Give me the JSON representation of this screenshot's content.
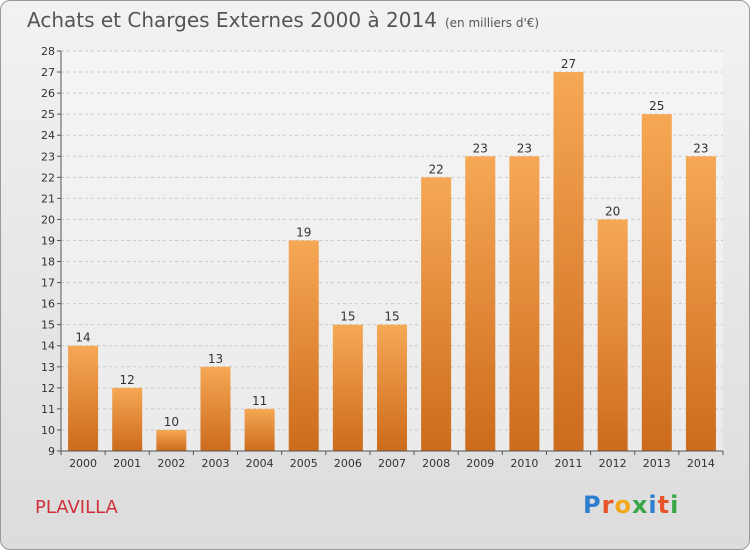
{
  "title": "Achats et Charges Externes 2000 à 2014",
  "unit_note": "(en milliers d'€)",
  "place": "PLAVILLA",
  "logo": {
    "text": "Proxiti",
    "letters": [
      "P",
      "r",
      "o",
      "x",
      "i",
      "t",
      "i"
    ],
    "colors": [
      "#2f7fd0",
      "#e8542a",
      "#f2a81d",
      "#3aa64a",
      "#2f7fd0",
      "#e8542a",
      "#3aa64a"
    ]
  },
  "colors": {
    "bar_light": "#f6a855",
    "bar_dark": "#cc6b1c",
    "grid": "#c9c9c9",
    "axis_text": "#333333",
    "place_text": "#d0303a"
  },
  "chart_data": {
    "type": "bar",
    "categories": [
      "2000",
      "2001",
      "2002",
      "2003",
      "2004",
      "2005",
      "2006",
      "2007",
      "2008",
      "2009",
      "2010",
      "2011",
      "2012",
      "2013",
      "2014"
    ],
    "values": [
      14,
      12,
      10,
      13,
      11,
      19,
      15,
      15,
      22,
      23,
      23,
      27,
      20,
      25,
      23
    ],
    "ylim": [
      9,
      28
    ],
    "yticks": [
      9,
      10,
      11,
      12,
      13,
      14,
      15,
      16,
      17,
      18,
      19,
      20,
      21,
      22,
      23,
      24,
      25,
      26,
      27,
      28
    ],
    "grid": true,
    "title": "Achats et Charges Externes 2000 à 2014",
    "xlabel": "",
    "ylabel": ""
  }
}
